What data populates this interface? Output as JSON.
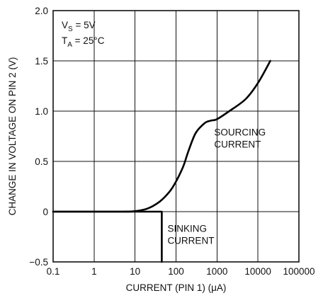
{
  "chart_data": {
    "type": "line",
    "xlabel": "CURRENT (PIN 1) (μA)",
    "ylabel": "CHANGE IN VOLTAGE ON PIN 2 (V)",
    "x_scale": "log",
    "xlim": [
      0.1,
      100000
    ],
    "ylim": [
      -0.5,
      2.0
    ],
    "x_ticks": [
      "0.1",
      "1",
      "10",
      "100",
      "1000",
      "10000",
      "100000"
    ],
    "y_ticks": [
      "2.0",
      "1.5",
      "1.0",
      "0.5",
      "0",
      "−0.5"
    ],
    "grid": true,
    "conditions": {
      "vs": {
        "prefix": "V",
        "sub": "S",
        "rest": " = 5V"
      },
      "ta": {
        "prefix": "T",
        "sub": "A",
        "rest": " = 25°C"
      }
    },
    "series": [
      {
        "label": [
          "SOURCING",
          "CURRENT"
        ],
        "x": [
          0.1,
          1,
          5,
          10,
          20,
          40,
          70,
          100,
          150,
          200,
          300,
          500,
          700,
          1000,
          2000,
          5000,
          10000,
          20000
        ],
        "y": [
          0,
          0,
          0,
          0.005,
          0.03,
          0.1,
          0.2,
          0.3,
          0.45,
          0.6,
          0.78,
          0.88,
          0.905,
          0.92,
          1.0,
          1.12,
          1.28,
          1.5
        ]
      },
      {
        "label": [
          "SINKING",
          "CURRENT"
        ],
        "x": [
          0.1,
          1,
          10,
          45,
          45
        ],
        "y": [
          0,
          0,
          0,
          0,
          -0.5
        ]
      }
    ]
  }
}
